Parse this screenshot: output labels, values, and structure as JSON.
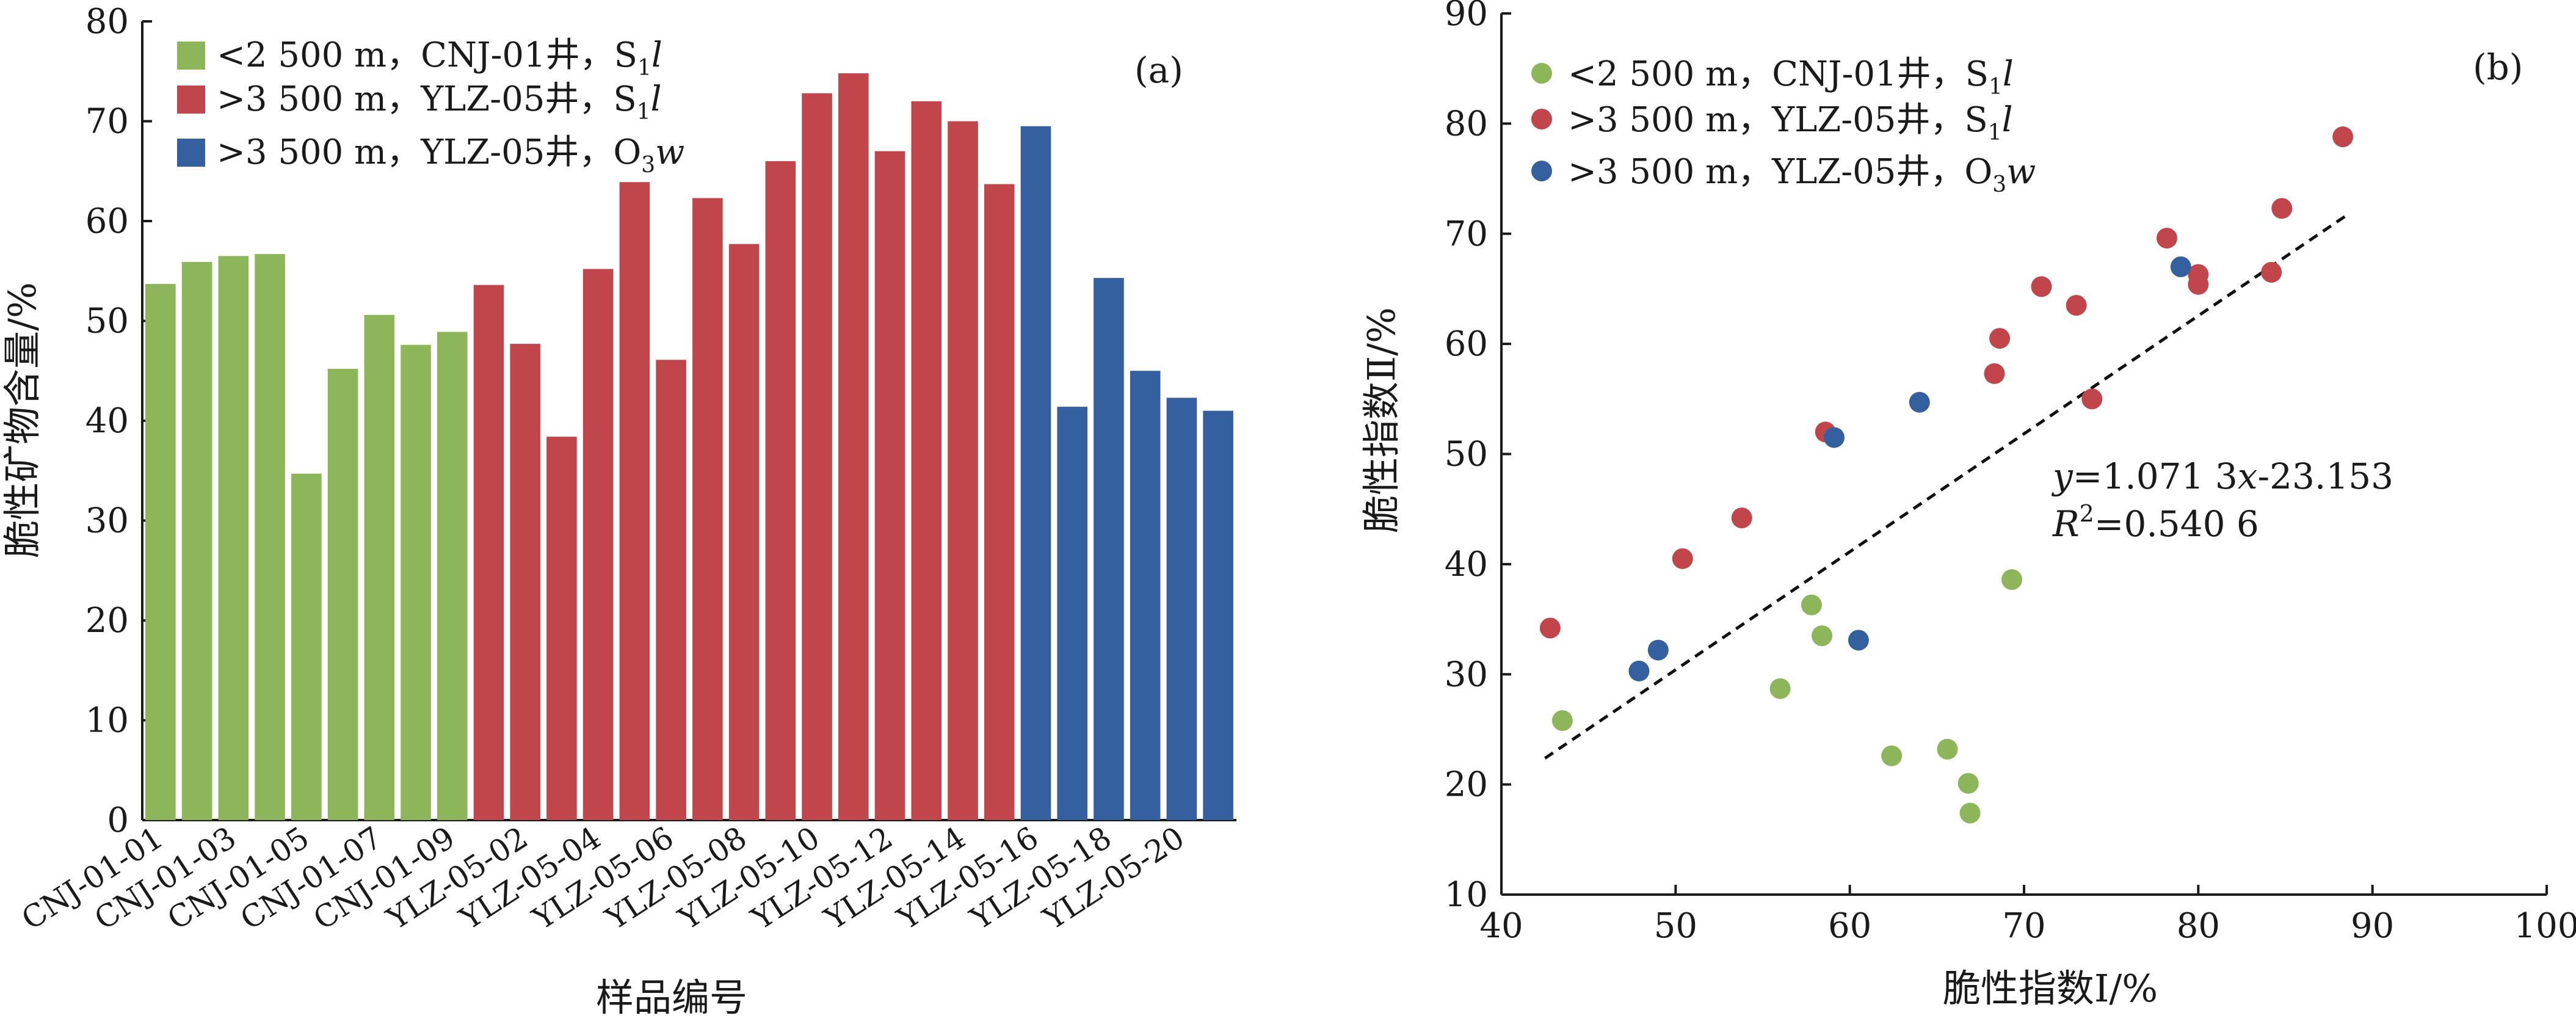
{
  "colors": {
    "green": "#8db55a",
    "red": "#c0464b",
    "blue": "#34609f"
  },
  "chart_data": [
    {
      "type": "bar",
      "panel": "(a)",
      "xlabel": "样品编号",
      "ylabel": "脆性矿物含量/%",
      "ylim": [
        0,
        80
      ],
      "yticks": [
        0,
        10,
        20,
        30,
        40,
        50,
        60,
        70,
        80
      ],
      "grid": false,
      "legend_position": "top-left",
      "legend": [
        {
          "pre": "<2 500 m，CNJ-01井，S",
          "sub": "1",
          "post": "l",
          "color_key": "green"
        },
        {
          "pre": ">3 500 m，YLZ-05井，S",
          "sub": "1",
          "post": "l",
          "color_key": "red"
        },
        {
          "pre": ">3 500 m，YLZ-05井，O",
          "sub": "3",
          "post": "w",
          "color_key": "blue"
        }
      ],
      "shown_tick_labels": [
        "CNJ-01-01",
        "CNJ-01-03",
        "CNJ-01-05",
        "CNJ-01-07",
        "CNJ-01-09",
        "YLZ-05-02",
        "YLZ-05-04",
        "YLZ-05-06",
        "YLZ-05-08",
        "YLZ-05-10",
        "YLZ-05-12",
        "YLZ-05-14",
        "YLZ-05-16",
        "YLZ-05-18",
        "YLZ-05-20"
      ],
      "bars": [
        {
          "group": "green",
          "value": 53.7,
          "label": "CNJ-01-01"
        },
        {
          "group": "green",
          "value": 55.9,
          "label": ""
        },
        {
          "group": "green",
          "value": 56.5,
          "label": "CNJ-01-03"
        },
        {
          "group": "green",
          "value": 56.7,
          "label": ""
        },
        {
          "group": "green",
          "value": 34.7,
          "label": "CNJ-01-05"
        },
        {
          "group": "green",
          "value": 45.2,
          "label": ""
        },
        {
          "group": "green",
          "value": 50.6,
          "label": "CNJ-01-07"
        },
        {
          "group": "green",
          "value": 47.6,
          "label": ""
        },
        {
          "group": "green",
          "value": 48.9,
          "label": "CNJ-01-09"
        },
        {
          "group": "red",
          "value": 53.6,
          "label": ""
        },
        {
          "group": "red",
          "value": 47.7,
          "label": "YLZ-05-02"
        },
        {
          "group": "red",
          "value": 38.4,
          "label": ""
        },
        {
          "group": "red",
          "value": 55.2,
          "label": "YLZ-05-04"
        },
        {
          "group": "red",
          "value": 63.9,
          "label": ""
        },
        {
          "group": "red",
          "value": 46.1,
          "label": "YLZ-05-06"
        },
        {
          "group": "red",
          "value": 62.3,
          "label": ""
        },
        {
          "group": "red",
          "value": 57.7,
          "label": "YLZ-05-08"
        },
        {
          "group": "red",
          "value": 66.0,
          "label": ""
        },
        {
          "group": "red",
          "value": 72.8,
          "label": "YLZ-05-10"
        },
        {
          "group": "red",
          "value": 74.8,
          "label": ""
        },
        {
          "group": "red",
          "value": 67.0,
          "label": "YLZ-05-12"
        },
        {
          "group": "red",
          "value": 72.0,
          "label": ""
        },
        {
          "group": "red",
          "value": 70.0,
          "label": "YLZ-05-14"
        },
        {
          "group": "red",
          "value": 63.7,
          "label": ""
        },
        {
          "group": "blue",
          "value": 69.5,
          "label": "YLZ-05-16"
        },
        {
          "group": "blue",
          "value": 41.4,
          "label": ""
        },
        {
          "group": "blue",
          "value": 54.3,
          "label": "YLZ-05-18"
        },
        {
          "group": "blue",
          "value": 45.0,
          "label": ""
        },
        {
          "group": "blue",
          "value": 42.3,
          "label": "YLZ-05-20"
        },
        {
          "group": "blue",
          "value": 41.0,
          "label": ""
        }
      ]
    },
    {
      "type": "scatter",
      "panel": "(b)",
      "xlabel": "脆性指数Ⅰ/%",
      "ylabel": "脆性指数Ⅱ/%",
      "xlim": [
        40,
        100
      ],
      "ylim": [
        10,
        90
      ],
      "xticks": [
        40,
        50,
        60,
        70,
        80,
        90,
        100
      ],
      "yticks": [
        10,
        20,
        30,
        40,
        50,
        60,
        70,
        80,
        90
      ],
      "grid": false,
      "legend_position": "top-left",
      "legend": [
        {
          "pre": "<2 500 m，CNJ-01井，S",
          "sub": "1",
          "post": "l",
          "color_key": "green"
        },
        {
          "pre": ">3 500 m，YLZ-05井，S",
          "sub": "1",
          "post": "l",
          "color_key": "red"
        },
        {
          "pre": ">3 500 m，YLZ-05井，O",
          "sub": "3",
          "post": "w",
          "color_key": "blue"
        }
      ],
      "series": [
        {
          "color_key": "green",
          "points": [
            [
              43.5,
              25.8
            ],
            [
              56.0,
              28.7
            ],
            [
              57.8,
              36.3
            ],
            [
              58.4,
              33.5
            ],
            [
              62.4,
              22.6
            ],
            [
              65.6,
              23.2
            ],
            [
              66.8,
              20.1
            ],
            [
              66.9,
              17.4
            ],
            [
              69.3,
              38.6
            ]
          ]
        },
        {
          "color_key": "red",
          "points": [
            [
              42.8,
              34.2
            ],
            [
              50.4,
              40.5
            ],
            [
              53.8,
              44.2
            ],
            [
              58.6,
              52.0
            ],
            [
              68.3,
              57.3
            ],
            [
              68.6,
              60.5
            ],
            [
              71.0,
              65.2
            ],
            [
              73.0,
              63.5
            ],
            [
              73.9,
              55.0
            ],
            [
              78.2,
              69.6
            ],
            [
              80.0,
              66.3
            ],
            [
              80.0,
              65.4
            ],
            [
              84.2,
              66.5
            ],
            [
              84.8,
              72.3
            ],
            [
              88.3,
              78.8
            ]
          ]
        },
        {
          "color_key": "blue",
          "points": [
            [
              47.9,
              30.3
            ],
            [
              49.0,
              32.2
            ],
            [
              59.1,
              51.5
            ],
            [
              60.5,
              33.1
            ],
            [
              64.0,
              54.7
            ],
            [
              79.0,
              67.0
            ]
          ]
        }
      ],
      "trendline": {
        "slope": 1.0713,
        "intercept": -23.153,
        "x_range": [
          42.5,
          88.5
        ]
      },
      "equation": {
        "y": "y",
        "eq1": "=1.071 3",
        "x": "x",
        "eq2": "-23.153",
        "r": "R",
        "r_sup": "2",
        "r_eq": "=0.540 6"
      }
    }
  ]
}
